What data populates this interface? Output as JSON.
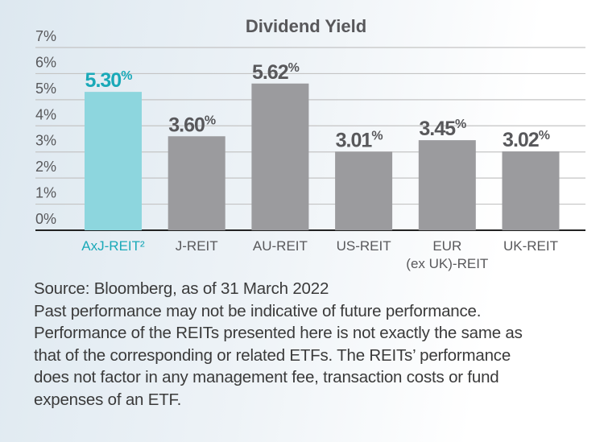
{
  "chart_data": {
    "type": "bar",
    "title": "Dividend Yield",
    "categories": [
      "AxJ-REIT²",
      "J-REIT",
      "AU-REIT",
      "US-REIT",
      "EUR\n(ex UK)-REIT",
      "UK-REIT"
    ],
    "values": [
      5.3,
      3.6,
      5.62,
      3.01,
      3.45,
      3.02
    ],
    "data_labels": [
      "5.30%",
      "3.60%",
      "5.62%",
      "3.01%",
      "3.45%",
      "3.02%"
    ],
    "highlighted_category": "AxJ-REIT²",
    "ylim": [
      0,
      7
    ],
    "yticks": [
      "0%",
      "1%",
      "2%",
      "3%",
      "4%",
      "5%",
      "6%",
      "7%"
    ],
    "grid": true,
    "colors": {
      "highlight": "#8dd6de",
      "highlight_text": "#1aa9b8",
      "bar": "#9b9b9e",
      "text": "#58585b",
      "grid": "#c4c4c4"
    }
  },
  "notes": [
    "Source: Bloomberg, as of 31 March 2022",
    "Past performance may not be indicative of future performance.",
    "Performance of the REITs presented here is not exactly the same as",
    "that of the corresponding or related ETFs. The REITs’ performance",
    "does not factor in any management fee, transaction costs or fund",
    "expenses of an ETF."
  ]
}
